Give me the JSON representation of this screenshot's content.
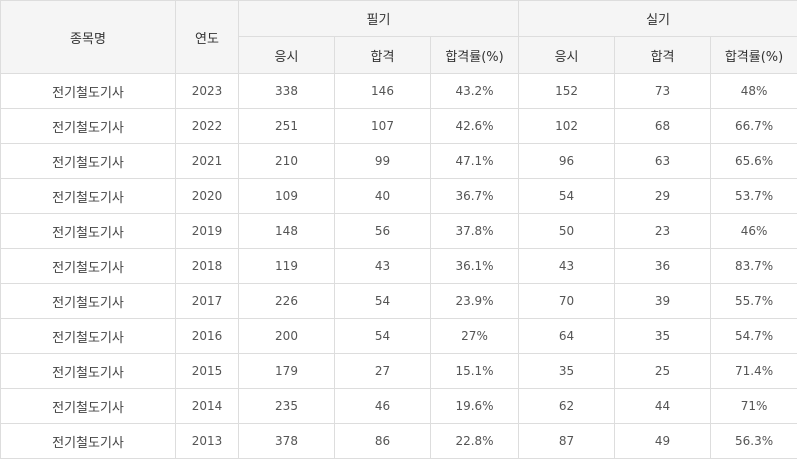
{
  "chart_data": {
    "type": "table",
    "headers": {
      "item": "종목명",
      "year": "연도",
      "written": "필기",
      "practical": "실기",
      "sub": [
        "응시",
        "합격",
        "합격률(%)",
        "응시",
        "합격",
        "합격률(%)"
      ]
    },
    "rows": [
      {
        "name": "전기철도기사",
        "year": "2023",
        "w_apply": "338",
        "w_pass": "146",
        "w_rate": "43.2%",
        "p_apply": "152",
        "p_pass": "73",
        "p_rate": "48%"
      },
      {
        "name": "전기철도기사",
        "year": "2022",
        "w_apply": "251",
        "w_pass": "107",
        "w_rate": "42.6%",
        "p_apply": "102",
        "p_pass": "68",
        "p_rate": "66.7%"
      },
      {
        "name": "전기철도기사",
        "year": "2021",
        "w_apply": "210",
        "w_pass": "99",
        "w_rate": "47.1%",
        "p_apply": "96",
        "p_pass": "63",
        "p_rate": "65.6%"
      },
      {
        "name": "전기철도기사",
        "year": "2020",
        "w_apply": "109",
        "w_pass": "40",
        "w_rate": "36.7%",
        "p_apply": "54",
        "p_pass": "29",
        "p_rate": "53.7%"
      },
      {
        "name": "전기철도기사",
        "year": "2019",
        "w_apply": "148",
        "w_pass": "56",
        "w_rate": "37.8%",
        "p_apply": "50",
        "p_pass": "23",
        "p_rate": "46%"
      },
      {
        "name": "전기철도기사",
        "year": "2018",
        "w_apply": "119",
        "w_pass": "43",
        "w_rate": "36.1%",
        "p_apply": "43",
        "p_pass": "36",
        "p_rate": "83.7%"
      },
      {
        "name": "전기철도기사",
        "year": "2017",
        "w_apply": "226",
        "w_pass": "54",
        "w_rate": "23.9%",
        "p_apply": "70",
        "p_pass": "39",
        "p_rate": "55.7%"
      },
      {
        "name": "전기철도기사",
        "year": "2016",
        "w_apply": "200",
        "w_pass": "54",
        "w_rate": "27%",
        "p_apply": "64",
        "p_pass": "35",
        "p_rate": "54.7%"
      },
      {
        "name": "전기철도기사",
        "year": "2015",
        "w_apply": "179",
        "w_pass": "27",
        "w_rate": "15.1%",
        "p_apply": "35",
        "p_pass": "25",
        "p_rate": "71.4%"
      },
      {
        "name": "전기철도기사",
        "year": "2014",
        "w_apply": "235",
        "w_pass": "46",
        "w_rate": "19.6%",
        "p_apply": "62",
        "p_pass": "44",
        "p_rate": "71%"
      },
      {
        "name": "전기철도기사",
        "year": "2013",
        "w_apply": "378",
        "w_pass": "86",
        "w_rate": "22.8%",
        "p_apply": "87",
        "p_pass": "49",
        "p_rate": "56.3%"
      }
    ]
  }
}
